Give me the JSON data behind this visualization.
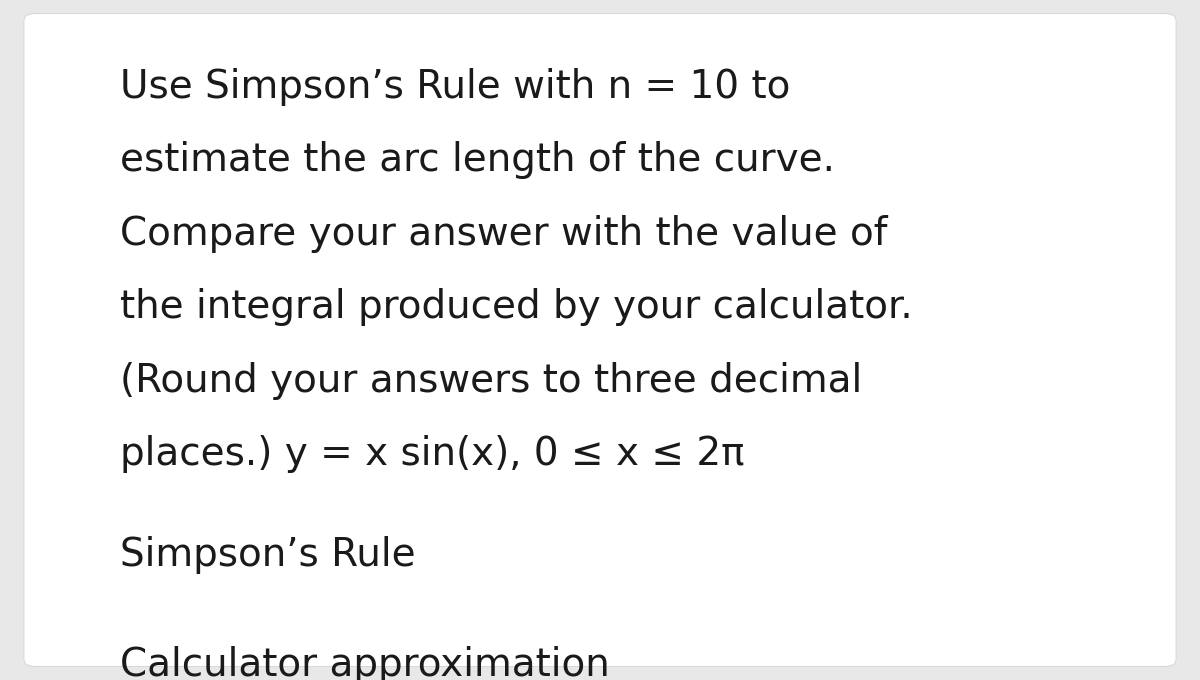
{
  "background_color": "#e8e8e8",
  "text_color": "#1a1a1a",
  "card_color": "#ffffff",
  "lines_main": [
    "Use Simpson’s Rule with n = 10 to",
    "estimate the arc length of the curve.",
    "Compare your answer with the value of",
    "the integral produced by your calculator.",
    "(Round your answers to three decimal",
    "places.) y = x sin(x), 0 ≤ x ≤ 2π"
  ],
  "paragraph2": "Simpson’s Rule",
  "paragraph3": "Calculator approximation",
  "font_size_main": 28,
  "font_size_sub": 28,
  "font_family": "DejaVu Sans"
}
